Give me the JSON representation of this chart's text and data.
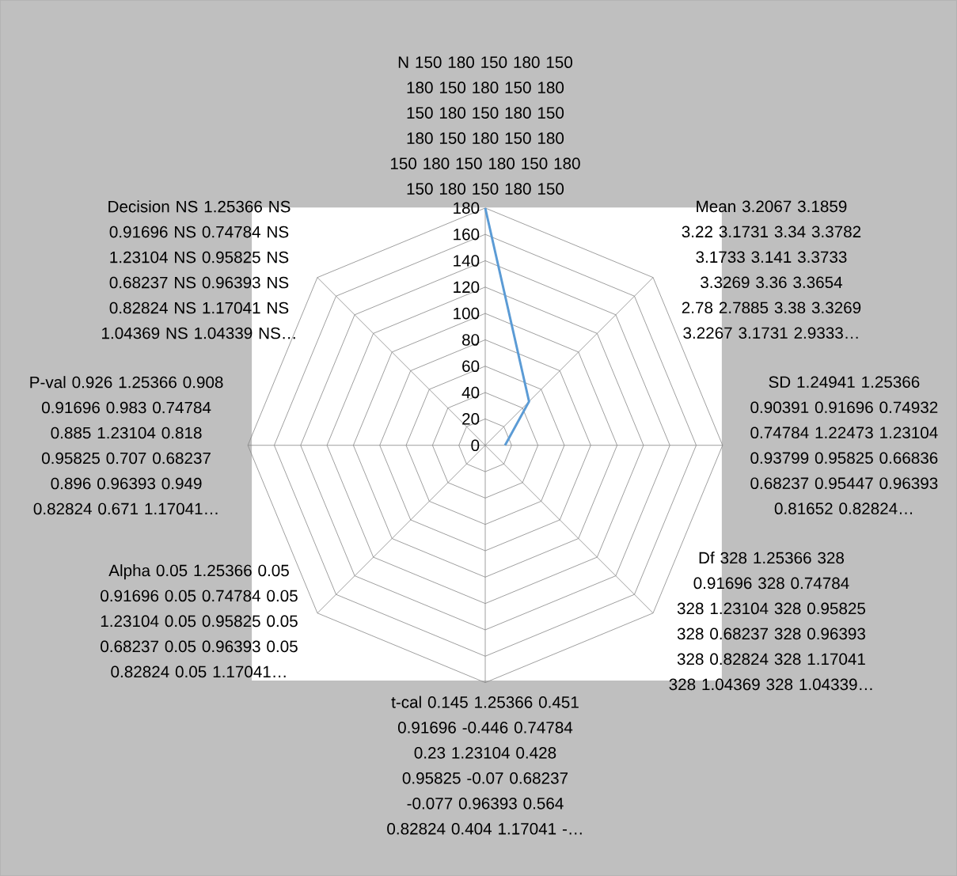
{
  "chart_data": {
    "type": "radar",
    "categories": [
      "N 150 180 150 180 150 180 150 180 150 180 150 180 150 180 150 180 150 180 150 180 150 180 150 180 150 180 150 180 150 180 150",
      "Mean 3.2067 3.1859 3.22 3.1731 3.34 3.3782 3.1733 3.141 3.3733 3.3269 3.36 3.3654 2.78 2.7885 3.38 3.3269 3.2267 3.1731 2.9333…",
      "SD 1.24941 1.25366 0.90391 0.91696 0.74932 0.74784 1.22473 1.23104 0.93799 0.95825 0.66836 0.68237 0.95447 0.96393 0.81652 0.82824…",
      "Df 328 1.25366 328 0.91696 328 0.74784 328 1.23104 328 0.95825 328 0.68237 328 0.96393 328 0.82824 328 1.17041 328 1.04369 328 1.04339…",
      "t-cal 0.145 1.25366 0.451 0.91696 -0.446 0.74784 0.23 1.23104 0.428 0.95825 -0.07 0.68237 -0.077 0.96393 0.564 0.82824 0.404 1.17041 -…",
      "Alpha 0.05 1.25366 0.05 0.91696 0.05 0.74784 0.05 1.23104 0.05 0.95825 0.05 0.68237 0.05 0.96393 0.05 0.82824 0.05 1.17041…",
      "P-val 0.926 1.25366 0.908 0.91696 0.983 0.74784 0.885 1.23104 0.818 0.95825 0.707 0.68237 0.896 0.96393 0.949 0.82824 0.671 1.17041…",
      "Decision NS 1.25366 NS 0.91696 NS 0.74784 NS 1.23104 NS 0.95825 NS 0.68237 NS 0.96393 NS 0.82824 NS 1.17041 NS 1.04369 NS 1.04339 NS…"
    ],
    "series": [
      {
        "color": "#5b9bd5",
        "values": [
          180,
          47,
          15,
          null,
          null,
          null,
          null,
          null
        ]
      }
    ],
    "ylim": [
      0,
      180
    ],
    "yticks": [
      0,
      20,
      40,
      60,
      80,
      100,
      120,
      140,
      160,
      180
    ],
    "grid": true
  }
}
